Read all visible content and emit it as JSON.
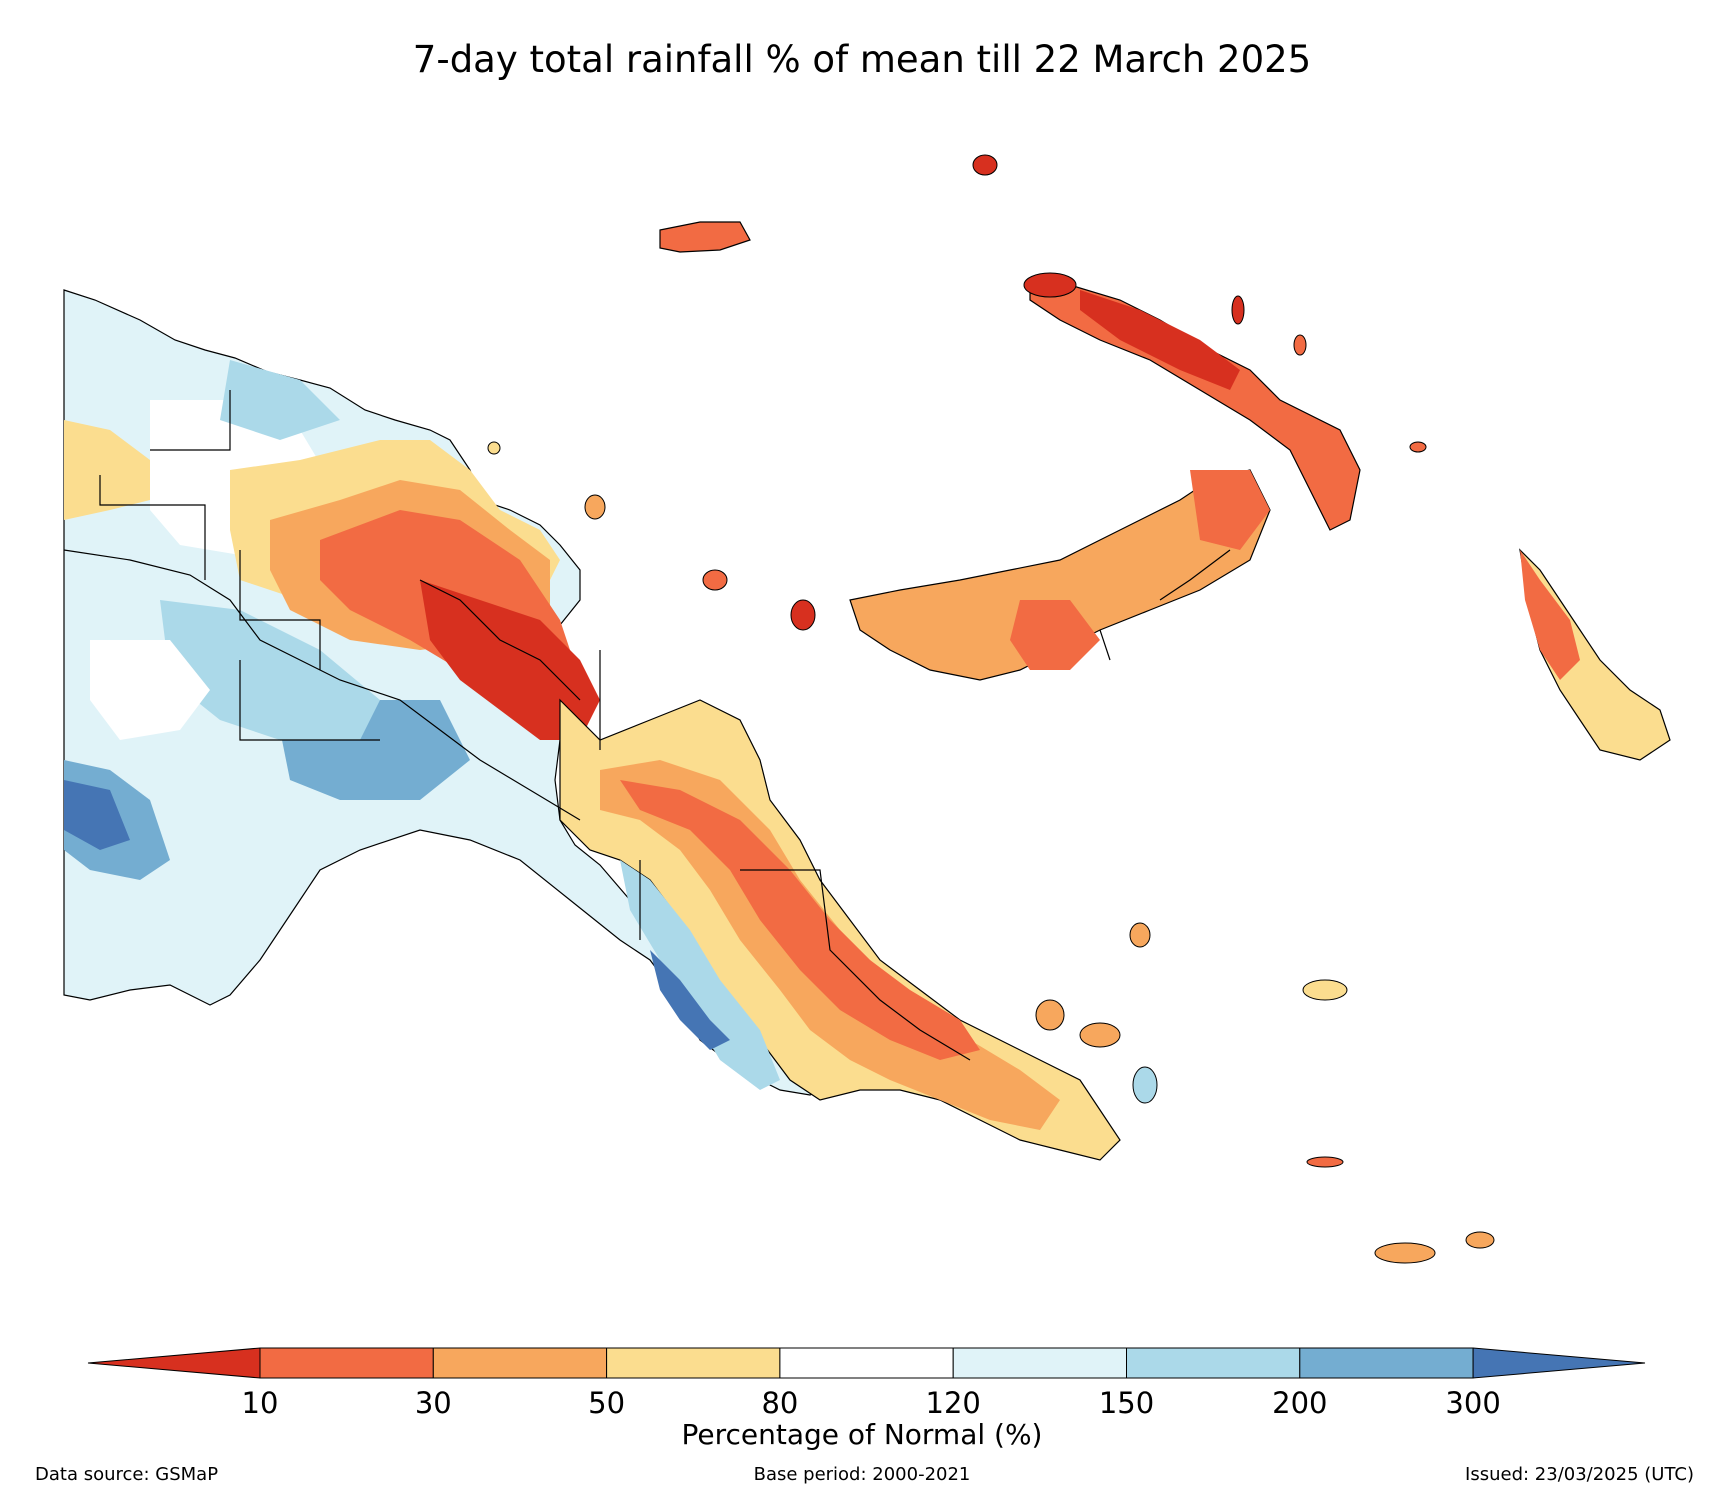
{
  "title": "7-day total rainfall % of mean till 22 March 2025",
  "colorbar": {
    "label": "Percentage of Normal (%)",
    "ticks": [
      "10",
      "30",
      "50",
      "80",
      "120",
      "150",
      "200",
      "300"
    ],
    "colors": [
      "#d7301f",
      "#f26b43",
      "#f7a75d",
      "#fbdd8f",
      "#ffffff",
      "#e0f3f8",
      "#abd9e9",
      "#74add1",
      "#4575b4"
    ]
  },
  "footer": {
    "source": "Data source: GSMaP",
    "base_period": "Base period: 2000-2021",
    "issued": "Issued: 23/03/2025 (UTC)"
  },
  "legend_colors": {
    "lt10": "#d7301f",
    "p10_30": "#f26b43",
    "p30_50": "#f7a75d",
    "p50_80": "#fbdd8f",
    "p80_120": "#ffffff",
    "p120_150": "#e0f3f8",
    "p150_200": "#abd9e9",
    "p200_300": "#74add1",
    "gt300": "#4575b4"
  }
}
